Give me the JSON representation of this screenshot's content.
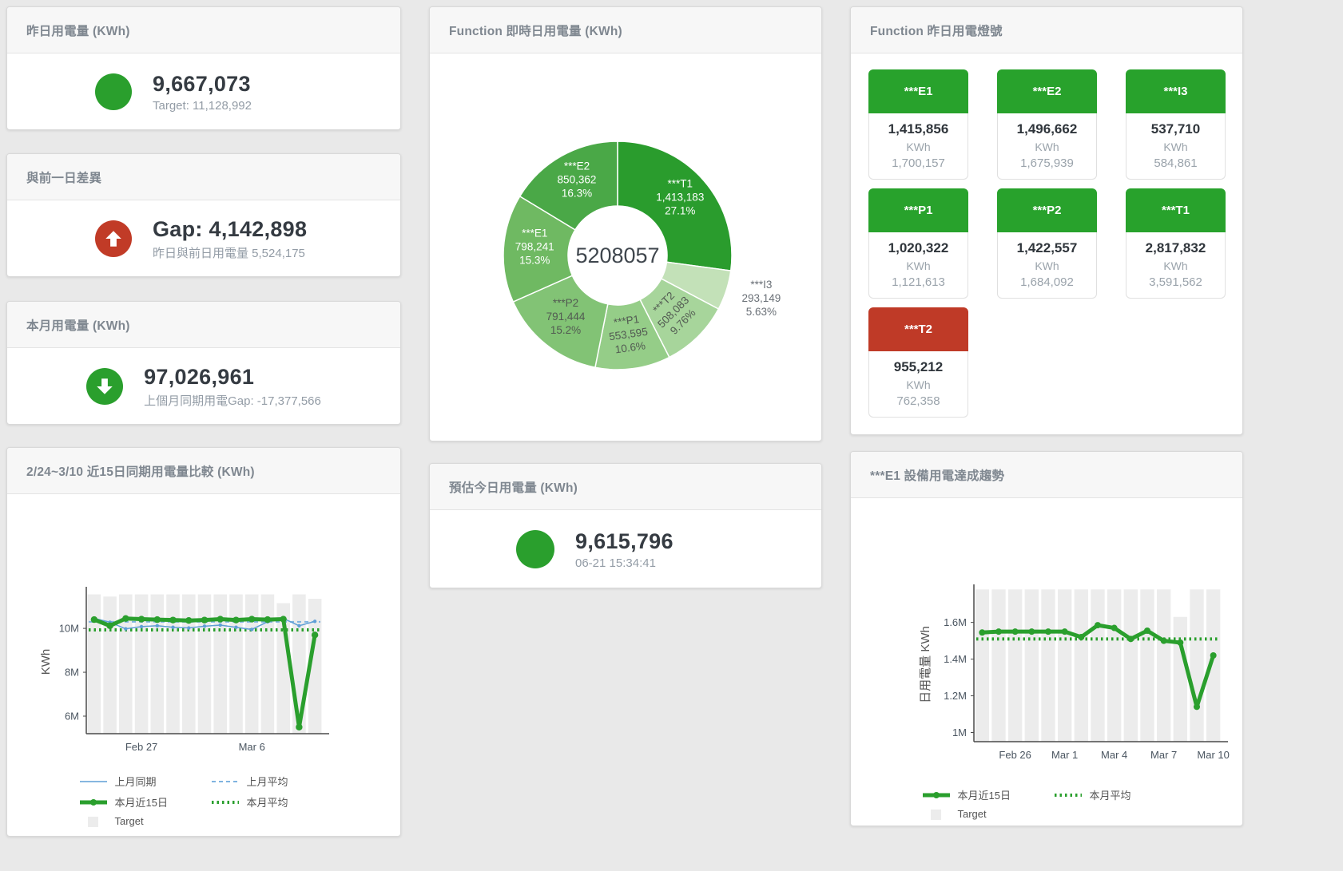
{
  "colors": {
    "green": "#2a9f2d",
    "red": "#c13b27",
    "tile_green": "#28a22c",
    "tile_red": "#bf3a27",
    "target_bar": "#ececec"
  },
  "cards": {
    "yesterday": {
      "title": "昨日用電量 (KWh)",
      "value": "9,667,073",
      "subtitle": "Target: 11,128,992",
      "icon": "circle",
      "icon_color": "#2a9f2d"
    },
    "day_gap": {
      "title": "與前一日差異",
      "value": "Gap: 4,142,898",
      "subtitle": "昨日與前日用電量 5,524,175",
      "icon": "arrow-up",
      "icon_color": "#c13b27"
    },
    "month": {
      "title": "本月用電量 (KWh)",
      "value": "97,026,961",
      "subtitle": "上個月同期用電Gap: -17,377,566",
      "icon": "arrow-down",
      "icon_color": "#2a9f2d"
    },
    "today_estimate": {
      "title": "預估今日用電量 (KWh)",
      "value": "9,615,796",
      "subtitle": "06-21 15:34:41",
      "icon": "circle",
      "icon_color": "#2a9f2d"
    }
  },
  "lights": {
    "title": "Function 昨日用電燈號",
    "tiles": [
      {
        "name": "***E1",
        "value": "1,415,856",
        "unit": "KWh",
        "target": "1,700,157",
        "status": "green"
      },
      {
        "name": "***E2",
        "value": "1,496,662",
        "unit": "KWh",
        "target": "1,675,939",
        "status": "green"
      },
      {
        "name": "***I3",
        "value": "537,710",
        "unit": "KWh",
        "target": "584,861",
        "status": "green"
      },
      {
        "name": "***P1",
        "value": "1,020,322",
        "unit": "KWh",
        "target": "1,121,613",
        "status": "green"
      },
      {
        "name": "***P2",
        "value": "1,422,557",
        "unit": "KWh",
        "target": "1,684,092",
        "status": "green"
      },
      {
        "name": "***T1",
        "value": "2,817,832",
        "unit": "KWh",
        "target": "3,591,562",
        "status": "green"
      },
      {
        "name": "***T2",
        "value": "955,212",
        "unit": "KWh",
        "target": "762,358",
        "status": "red"
      }
    ]
  },
  "chart_data": [
    {
      "type": "pie",
      "title": "Function 即時日用電量 (KWh)",
      "center_total": "5208057",
      "slices": [
        {
          "label": "***T1",
          "value": 1413183,
          "value_label": "1,413,183",
          "pct_label": "27.1%",
          "color": "#2a9c2d",
          "label_style": "light",
          "rotate": 0
        },
        {
          "label": "***I3",
          "value": 293149,
          "value_label": "293,149",
          "pct_label": "5.63%",
          "color": "#c3e1b8",
          "label_style": "outside",
          "rotate": 0
        },
        {
          "label": "***T2",
          "value": 508083,
          "value_label": "508,083",
          "pct_label": "9.76%",
          "color": "#a7d59b",
          "label_style": "dark",
          "rotate": -45
        },
        {
          "label": "***P1",
          "value": 553595,
          "value_label": "553,595",
          "pct_label": "10.6%",
          "color": "#95cd88",
          "label_style": "dark",
          "rotate": -8
        },
        {
          "label": "***P2",
          "value": 791444,
          "value_label": "791,444",
          "pct_label": "15.2%",
          "color": "#82c375",
          "label_style": "dark",
          "rotate": 0
        },
        {
          "label": "***E1",
          "value": 798241,
          "value_label": "798,241",
          "pct_label": "15.3%",
          "color": "#6fb962",
          "label_style": "light",
          "rotate": 0
        },
        {
          "label": "***E2",
          "value": 850362,
          "value_label": "850,362",
          "pct_label": "16.3%",
          "color": "#4aa847",
          "label_style": "light",
          "rotate": 0
        }
      ]
    },
    {
      "type": "line",
      "title": "2/24~3/10 近15日同期用電量比較 (KWh)",
      "ylabel": "KWh",
      "ylim": [
        5.2,
        11.75
      ],
      "yticks": [
        6,
        8,
        10
      ],
      "ytick_labels": [
        "6M",
        "8M",
        "10M"
      ],
      "x_count": 15,
      "xticks": [
        {
          "index": 3,
          "label": "Feb 27"
        },
        {
          "index": 10,
          "label": "Mar 6"
        }
      ],
      "grid": false,
      "legend_position": "bottom",
      "target": {
        "name": "Target",
        "color": "#ececec",
        "values": [
          11.55,
          11.45,
          11.55,
          11.55,
          11.55,
          11.55,
          11.55,
          11.55,
          11.55,
          11.55,
          11.55,
          11.55,
          11.15,
          11.55,
          11.35
        ]
      },
      "series": [
        {
          "name": "上月同期",
          "type": "line",
          "color": "#5f9fd6",
          "width": 1.5,
          "dash": "solid",
          "marker": 2.2,
          "values": [
            10.46,
            10.28,
            9.98,
            10.08,
            10.12,
            10.05,
            10.02,
            10.1,
            10.15,
            10.05,
            9.95,
            10.3,
            10.45,
            10.12,
            10.32
          ]
        },
        {
          "name": "上月平均",
          "type": "avg",
          "color": "#7fb3e0",
          "width": 2,
          "dash": "dashed",
          "value": 10.3
        },
        {
          "name": "本月近15日",
          "type": "line",
          "color": "#2a9f2d",
          "width": 5,
          "dash": "solid",
          "marker": 4.2,
          "values": [
            10.4,
            10.12,
            10.45,
            10.42,
            10.4,
            10.38,
            10.36,
            10.38,
            10.42,
            10.38,
            10.42,
            10.4,
            10.42,
            5.5,
            9.7
          ]
        },
        {
          "name": "本月平均",
          "type": "avg",
          "color": "#2a9f2d",
          "width": 4,
          "dash": "dotted",
          "value": 9.93
        }
      ],
      "legend_rows": [
        [
          "上月同期",
          "上月平均"
        ],
        [
          "本月近15日",
          "本月平均"
        ],
        [
          "Target"
        ]
      ]
    },
    {
      "type": "line",
      "title": "***E1 設備用電達成趨勢",
      "ylabel": "日用電量 KWh",
      "ylim": [
        0.95,
        1.79
      ],
      "yticks": [
        1,
        1.2,
        1.4,
        1.6
      ],
      "ytick_labels": [
        "1M",
        "1.2M",
        "1.4M",
        "1.6M"
      ],
      "x_count": 15,
      "xticks": [
        {
          "index": 2,
          "label": "Feb 26"
        },
        {
          "index": 5,
          "label": "Mar 1"
        },
        {
          "index": 8,
          "label": "Mar 4"
        },
        {
          "index": 11,
          "label": "Mar 7"
        },
        {
          "index": 14,
          "label": "Mar 10"
        }
      ],
      "grid": false,
      "legend_position": "bottom",
      "target": {
        "name": "Target",
        "color": "#ececec",
        "values": [
          1.78,
          1.78,
          1.78,
          1.78,
          1.78,
          1.78,
          1.78,
          1.78,
          1.78,
          1.78,
          1.78,
          1.78,
          1.63,
          1.78,
          1.78
        ]
      },
      "series": [
        {
          "name": "本月近15日",
          "type": "line",
          "color": "#2a9f2d",
          "width": 5,
          "dash": "solid",
          "marker": 4,
          "values": [
            1.545,
            1.55,
            1.55,
            1.55,
            1.55,
            1.55,
            1.52,
            1.585,
            1.57,
            1.51,
            1.555,
            1.5,
            1.49,
            1.14,
            1.42
          ]
        },
        {
          "name": "本月平均",
          "type": "avg",
          "color": "#2a9f2d",
          "width": 4,
          "dash": "dotted",
          "value": 1.51
        }
      ],
      "legend_rows": [
        [
          "本月近15日",
          "本月平均"
        ],
        [
          "Target"
        ]
      ]
    }
  ]
}
